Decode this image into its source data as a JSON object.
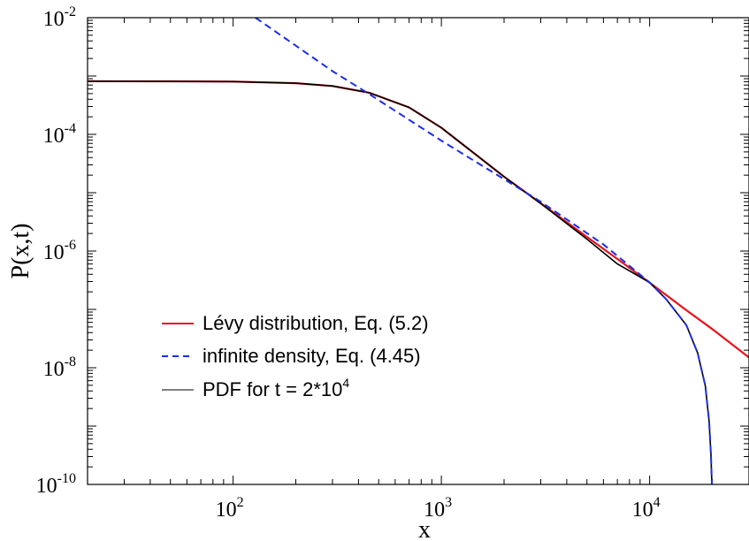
{
  "chart_data": {
    "type": "line",
    "title": "",
    "xlabel": "x",
    "ylabel": "P(x,t)",
    "xscale": "log",
    "yscale": "log",
    "xlim": [
      20,
      30000
    ],
    "ylim": [
      1e-10,
      0.01
    ],
    "x_ticks": [
      {
        "value": 100,
        "base": "10",
        "exp": "2"
      },
      {
        "value": 1000,
        "base": "10",
        "exp": "3"
      },
      {
        "value": 10000,
        "base": "10",
        "exp": "4"
      }
    ],
    "y_ticks": [
      {
        "value": 1e-10,
        "base": "10",
        "exp": "-10"
      },
      {
        "value": 1e-08,
        "base": "10",
        "exp": "-8"
      },
      {
        "value": 1e-06,
        "base": "10",
        "exp": "-6"
      },
      {
        "value": 0.0001,
        "base": "10",
        "exp": "-4"
      },
      {
        "value": 0.01,
        "base": "10",
        "exp": "-2"
      }
    ],
    "grid": false,
    "legend_position": "bottom-left",
    "series": [
      {
        "name": "Lévy distribution, Eq. (5.2)",
        "color": "#e8121b",
        "dash": "solid",
        "x": [
          20,
          50,
          100,
          200,
          300,
          450,
          700,
          1000,
          1500,
          2000,
          3000,
          5000,
          7000,
          10000,
          15000,
          20000,
          30000
        ],
        "y": [
          0.000813,
          0.000812,
          0.000802,
          0.000755,
          0.000675,
          0.000518,
          0.00029,
          0.00013,
          4.2e-05,
          1.88e-05,
          6.6e-06,
          1.75e-06,
          7.3e-07,
          2.88e-07,
          9.7e-08,
          4.6e-08,
          1.5e-08
        ]
      },
      {
        "name": "infinite density, Eq. (4.45)",
        "color": "#1a2ee8",
        "dash": "dashed",
        "x": [
          128,
          300,
          450,
          1000,
          3000,
          6000,
          10000,
          12000,
          15000,
          17000,
          18500,
          19300,
          19700,
          19850,
          19920
        ],
        "y": [
          0.01,
          0.00121,
          0.00049,
          7.8e-05,
          7e-06,
          1.3e-06,
          2.9e-07,
          1.5e-07,
          5.4e-08,
          1.8e-08,
          4.9e-09,
          1.2e-09,
          3.2e-10,
          1.3e-10,
          1e-10
        ]
      },
      {
        "name": "PDF for t = 2*10",
        "name_sup": "4",
        "color": "#000000",
        "dash": "solid",
        "x": [
          20,
          50,
          100,
          200,
          300,
          450,
          700,
          1000,
          1500,
          2000,
          3000,
          5000,
          7000,
          10000,
          12000,
          15000,
          17000,
          18500,
          19300,
          19700,
          19850,
          19920
        ],
        "y": [
          0.000813,
          0.000812,
          0.000802,
          0.000755,
          0.000675,
          0.000518,
          0.00029,
          0.00013,
          4.2e-05,
          1.88e-05,
          6.5e-06,
          1.6e-06,
          6e-07,
          2.9e-07,
          1.5e-07,
          5.4e-08,
          1.8e-08,
          4.9e-09,
          1.2e-09,
          3.2e-10,
          1.3e-10,
          1e-10
        ]
      }
    ]
  }
}
